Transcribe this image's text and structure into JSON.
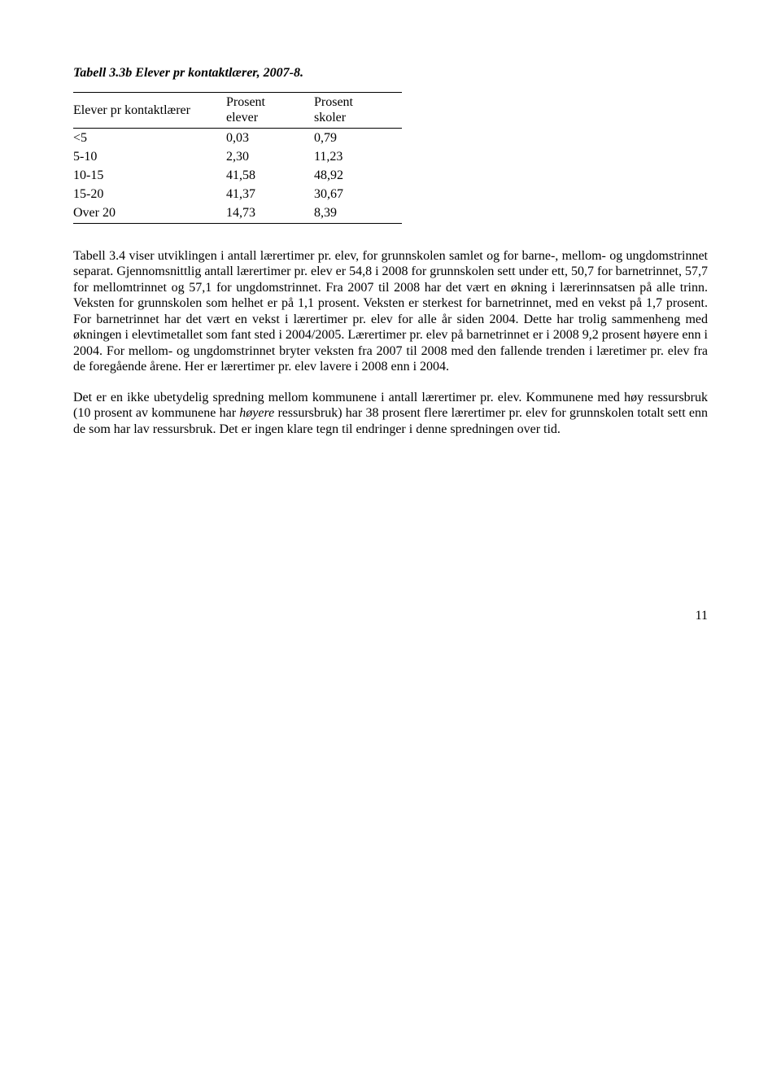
{
  "title": "Tabell 3.3b  Elever pr kontaktlærer, 2007-8.",
  "table": {
    "headers": {
      "col0": "Elever pr kontaktlærer",
      "col1_line1": "Prosent",
      "col1_line2": "elever",
      "col2_line1": "Prosent",
      "col2_line2": "skoler"
    },
    "rows": [
      {
        "label": "<5",
        "v1": "0,03",
        "v2": "0,79"
      },
      {
        "label": "5-10",
        "v1": "2,30",
        "v2": "11,23"
      },
      {
        "label": "10-15",
        "v1": "41,58",
        "v2": "48,92"
      },
      {
        "label": "15-20",
        "v1": "41,37",
        "v2": "30,67"
      },
      {
        "label": "Over 20",
        "v1": "14,73",
        "v2": "8,39"
      }
    ]
  },
  "paragraphs": {
    "p1": "Tabell 3.4 viser utviklingen i antall lærertimer pr. elev, for grunnskolen samlet og for barne-, mellom- og ungdomstrinnet separat. Gjennomsnittlig antall lærertimer pr. elev er 54,8 i 2008 for grunnskolen sett under ett, 50,7 for barnetrinnet, 57,7 for mellomtrinnet og 57,1 for ungdomstrinnet. Fra 2007 til 2008 har det vært en økning i lærerinnsatsen på alle trinn. Veksten for grunnskolen som helhet er på 1,1 prosent. Veksten er sterkest for barnetrinnet, med en vekst på 1,7 prosent. For barnetrinnet har det vært en vekst i lærertimer pr. elev for alle år siden 2004. Dette har trolig sammenheng med økningen i elevtimetallet som fant sted i 2004/2005. Lærertimer pr. elev på barnetrinnet er i 2008 9,2 prosent høyere enn i 2004. For mellom- og ungdomstrinnet bryter veksten fra 2007 til 2008 med den fallende trenden i læretimer pr. elev fra de foregående årene. Her er lærertimer pr. elev lavere i 2008 enn i 2004.",
    "p2a": "Det er en ikke ubetydelig spredning mellom kommunene i antall lærertimer pr. elev. Kommunene med høy ressursbruk (10 prosent av kommunene har ",
    "p2_italic": "høyere",
    "p2b": " ressursbruk) har 38 prosent flere lærertimer pr. elev for grunnskolen totalt sett enn de som har lav ressursbruk. Det er ingen klare tegn til endringer i denne spredningen over tid."
  },
  "page_number": "11"
}
